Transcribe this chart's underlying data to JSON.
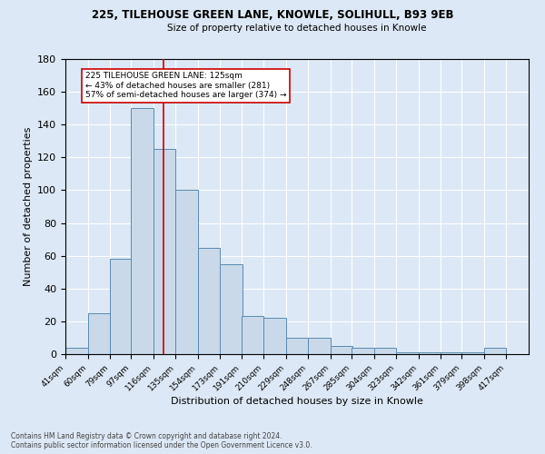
{
  "title1": "225, TILEHOUSE GREEN LANE, KNOWLE, SOLIHULL, B93 9EB",
  "title2": "Size of property relative to detached houses in Knowle",
  "xlabel": "Distribution of detached houses by size in Knowle",
  "ylabel": "Number of detached properties",
  "footer": "Contains HM Land Registry data © Crown copyright and database right 2024.\nContains public sector information licensed under the Open Government Licence v3.0.",
  "bin_labels": [
    "41sqm",
    "60sqm",
    "79sqm",
    "97sqm",
    "116sqm",
    "135sqm",
    "154sqm",
    "173sqm",
    "191sqm",
    "210sqm",
    "229sqm",
    "248sqm",
    "267sqm",
    "285sqm",
    "304sqm",
    "323sqm",
    "342sqm",
    "361sqm",
    "379sqm",
    "398sqm",
    "417sqm"
  ],
  "bin_edges": [
    41,
    60,
    79,
    97,
    116,
    135,
    154,
    173,
    191,
    210,
    229,
    248,
    267,
    285,
    304,
    323,
    342,
    361,
    379,
    398,
    417
  ],
  "bar_heights": [
    4,
    25,
    58,
    150,
    125,
    100,
    65,
    55,
    23,
    22,
    10,
    10,
    5,
    4,
    4,
    1,
    1,
    1,
    1,
    4,
    0
  ],
  "bar_color": "#c9d9ea",
  "bar_edge_color": "#5a8ab0",
  "vline_x": 125,
  "vline_color": "#cc0000",
  "annotation_title": "225 TILEHOUSE GREEN LANE: 125sqm",
  "annotation_line1": "← 43% of detached houses are smaller (281)",
  "annotation_line2": "57% of semi-detached houses are larger (374) →",
  "annotation_box_color": "#ffffff",
  "annotation_box_edge_color": "#cc0000",
  "ylim": [
    0,
    180
  ],
  "yticks": [
    0,
    20,
    40,
    60,
    80,
    100,
    120,
    140,
    160,
    180
  ],
  "background_color": "#dce8f5",
  "axes_background_color": "#dce8f5"
}
